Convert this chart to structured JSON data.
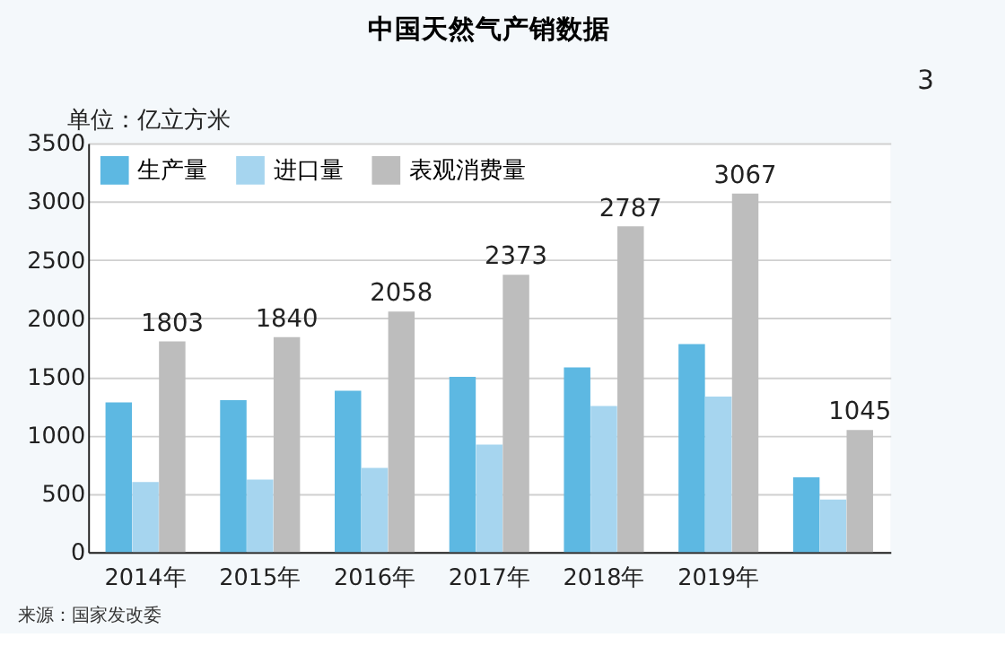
{
  "chart_data": {
    "type": "bar",
    "title": "中国天然气产销数据",
    "ylabel": "单位：亿立方米",
    "categories": [
      "2014年",
      "2015年",
      "2016年",
      "2017年",
      "2018年",
      "2019年",
      null
    ],
    "series": [
      {
        "name": "生产量",
        "color": "#5db8e2",
        "values": [
          1280,
          1300,
          1380,
          1500,
          1580,
          1780,
          640
        ]
      },
      {
        "name": "进口量",
        "color": "#a6d5ef",
        "values": [
          600,
          620,
          720,
          920,
          1250,
          1330,
          450
        ]
      },
      {
        "name": "表观消费量",
        "color": "#bdbdbd",
        "values": [
          1803,
          1840,
          2058,
          2373,
          2787,
          3067,
          1045
        ],
        "value_labels": [
          "1803",
          "1840",
          "2058",
          "2373",
          "2787",
          "3067",
          "1045"
        ]
      }
    ],
    "ylim": [
      0,
      3500
    ],
    "yticks": [
      0,
      500,
      1000,
      1500,
      2000,
      2500,
      3000,
      3500
    ],
    "grid": "y",
    "legend": "top left",
    "annotations": [
      "3",
      "来源：国家发改委"
    ]
  }
}
